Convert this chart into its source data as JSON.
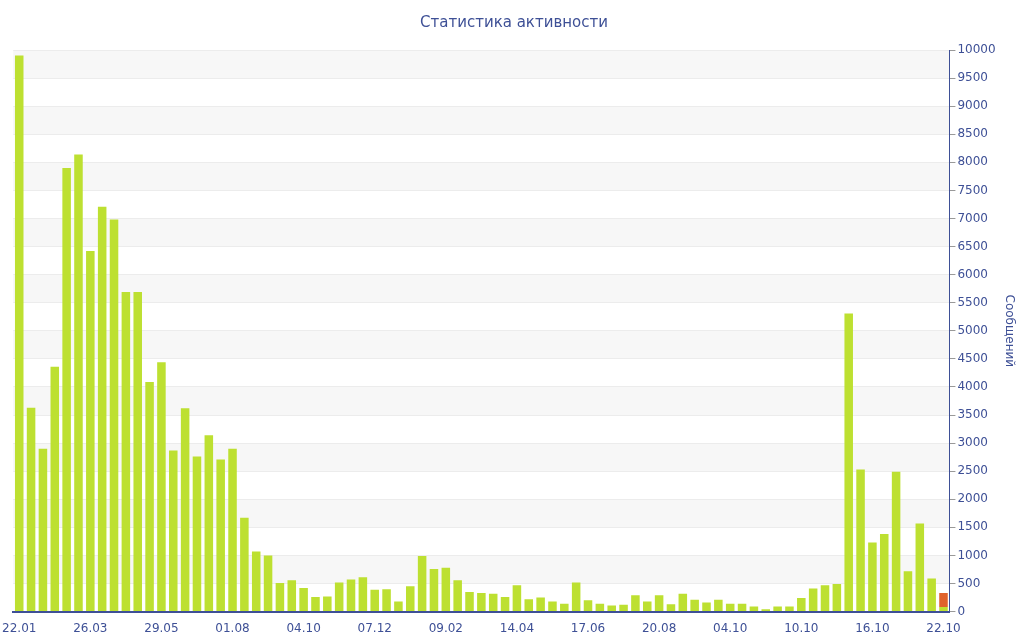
{
  "chart_data": {
    "type": "bar",
    "title": "Статистика активности",
    "ylabel": "Сообщений",
    "stacked": true,
    "grid": true,
    "legend": false,
    "categories": [
      "22.01",
      null,
      null,
      null,
      null,
      null,
      "26.03",
      null,
      null,
      null,
      null,
      null,
      "29.05",
      null,
      null,
      null,
      null,
      null,
      "01.08",
      null,
      null,
      null,
      null,
      null,
      "04.10",
      null,
      null,
      null,
      null,
      null,
      "07.12",
      null,
      null,
      null,
      null,
      null,
      "09.02",
      null,
      null,
      null,
      null,
      null,
      "14.04",
      null,
      null,
      null,
      null,
      null,
      "17.06",
      null,
      null,
      null,
      null,
      null,
      "20.08",
      null,
      null,
      null,
      null,
      null,
      "04.10",
      null,
      null,
      null,
      null,
      null,
      "10.10",
      null,
      null,
      null,
      null,
      null,
      "16.10",
      null,
      null,
      null,
      null,
      null,
      "22.10"
    ],
    "series": [
      {
        "color": "#bde031",
        "values": [
          9900,
          3630,
          2900,
          4360,
          7900,
          8140,
          6420,
          7210,
          6980,
          5690,
          5690,
          4090,
          4440,
          2870,
          3620,
          2760,
          3140,
          2710,
          2900,
          1670,
          1070,
          1000,
          510,
          560,
          420,
          260,
          270,
          520,
          570,
          610,
          390,
          400,
          180,
          450,
          990,
          760,
          780,
          560,
          350,
          330,
          320,
          260,
          470,
          220,
          250,
          180,
          140,
          520,
          200,
          140,
          110,
          120,
          290,
          180,
          290,
          130,
          320,
          210,
          160,
          210,
          140,
          140,
          90,
          40,
          90,
          90,
          240,
          410,
          470,
          490,
          5310,
          2530,
          1230,
          1380,
          2490,
          720,
          1570,
          590,
          80
        ]
      },
      {
        "color": "#e0622c",
        "values": [
          null,
          null,
          null,
          null,
          null,
          null,
          null,
          null,
          null,
          null,
          null,
          null,
          null,
          null,
          null,
          null,
          null,
          null,
          null,
          null,
          null,
          null,
          null,
          null,
          null,
          null,
          null,
          null,
          null,
          null,
          null,
          null,
          null,
          null,
          null,
          null,
          null,
          null,
          null,
          null,
          null,
          null,
          null,
          null,
          null,
          null,
          null,
          null,
          null,
          null,
          null,
          null,
          null,
          null,
          null,
          null,
          null,
          null,
          null,
          null,
          null,
          null,
          null,
          null,
          null,
          null,
          null,
          null,
          null,
          null,
          null,
          null,
          null,
          null,
          null,
          null,
          null,
          null,
          250
        ]
      }
    ],
    "ylim": [
      0,
      10000
    ],
    "yticks": [
      0,
      500,
      1000,
      1500,
      2000,
      2500,
      3000,
      3500,
      4000,
      4500,
      5000,
      5500,
      6000,
      6500,
      7000,
      7500,
      8000,
      8500,
      9000,
      9500,
      10000
    ]
  }
}
